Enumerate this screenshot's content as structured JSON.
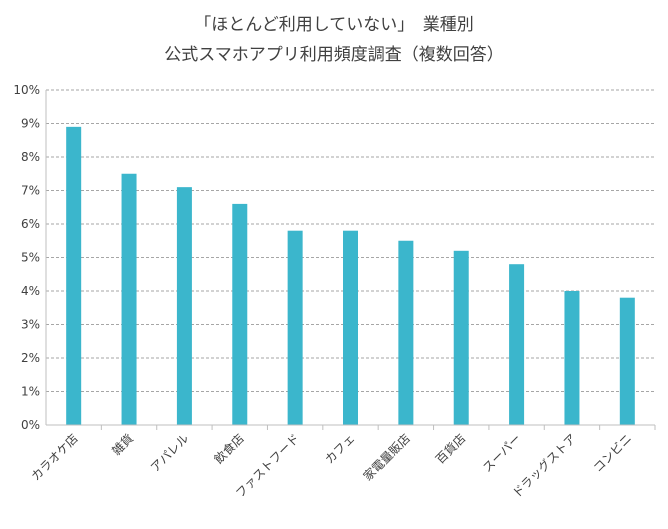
{
  "chart_data": {
    "type": "bar",
    "title_lines": [
      "「ほとんど利用していない」　業種別",
      "公式スマホアプリ利用頻度調査（複数回答）"
    ],
    "categories": [
      "カラオケ店",
      "雑貨",
      "アパレル",
      "飲食店",
      "ファストフード",
      "カフェ",
      "家電量販店",
      "百貨店",
      "スーパー",
      "ドラッグストア",
      "コンビニ"
    ],
    "values": [
      8.9,
      7.5,
      7.1,
      6.6,
      5.8,
      5.8,
      5.5,
      5.2,
      4.8,
      4.0,
      3.8
    ],
    "unit": "%",
    "ylim": [
      0,
      10
    ],
    "yticks": [
      "0%",
      "1%",
      "2%",
      "3%",
      "4%",
      "5%",
      "6%",
      "7%",
      "8%",
      "9%",
      "10%"
    ],
    "xlabel": "",
    "ylabel": "",
    "grid": "horizontal dashed",
    "legend": "none",
    "colors": {
      "bar": "#3BB6CC",
      "grid": "#A6A6A6",
      "axis": "#BFBFBF",
      "text": "#404040"
    }
  }
}
